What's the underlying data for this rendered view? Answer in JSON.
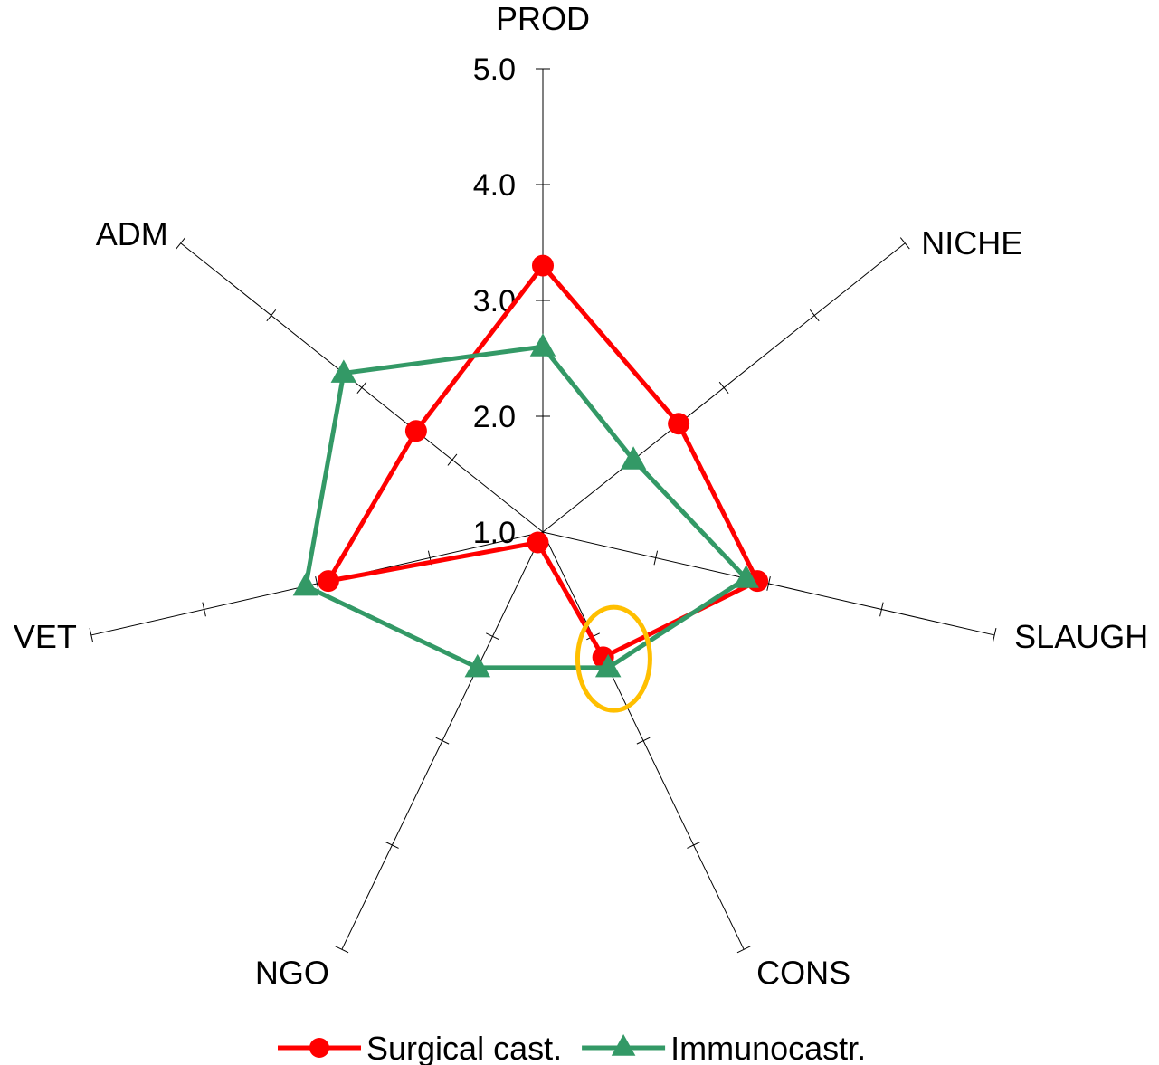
{
  "chart_data": {
    "type": "radar",
    "title": "",
    "categories": [
      "PROD",
      "NICHE",
      "SLAUGH",
      "CONS",
      "NGO",
      "VET",
      "ADM"
    ],
    "rlim": [
      1.0,
      5.0
    ],
    "rticks": [
      "1.0",
      "2.0",
      "3.0",
      "4.0",
      "5.0"
    ],
    "rtick_values": [
      1,
      2,
      3,
      4,
      5
    ],
    "grid": false,
    "legend_position": "bottom",
    "series": [
      {
        "name": "Surgical cast.",
        "color": "#ff0000",
        "marker": "circle",
        "values": [
          3.3,
          2.5,
          2.9,
          2.2,
          1.1,
          2.9,
          2.4
        ]
      },
      {
        "name": "Immunocastr.",
        "color": "#339966",
        "marker": "triangle",
        "values": [
          2.6,
          2.0,
          2.8,
          2.3,
          2.3,
          3.1,
          3.2
        ]
      }
    ],
    "annotations": [
      {
        "type": "ellipse-highlight",
        "category": "CONS",
        "value": 2.25,
        "color": "#ffbf00"
      }
    ]
  }
}
